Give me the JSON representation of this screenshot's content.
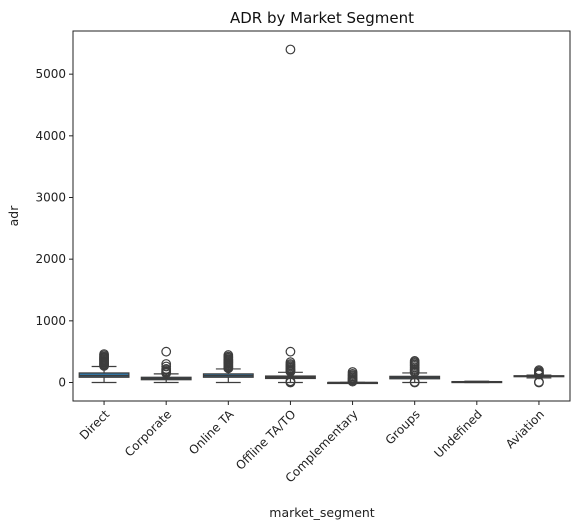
{
  "chart_data": {
    "type": "box",
    "title": "ADR by Market Segment",
    "xlabel": "market_segment",
    "ylabel": "adr",
    "ylim": [
      -300,
      5700
    ],
    "yticks": [
      0,
      1000,
      2000,
      3000,
      4000,
      5000
    ],
    "box_color": "#3274a1",
    "categories": [
      "Direct",
      "Corporate",
      "Online TA",
      "Offline TA/TO",
      "Complementary",
      "Groups",
      "Undefined",
      "Aviation"
    ],
    "boxes": [
      {
        "category": "Direct",
        "whisker_low": 0,
        "q1": 85,
        "median": 110,
        "q3": 155,
        "whisker_high": 260,
        "outliers": [
          270,
          285,
          300,
          315,
          330,
          345,
          360,
          375,
          390,
          405,
          420,
          440,
          460
        ]
      },
      {
        "category": "Corporate",
        "whisker_low": 0,
        "q1": 45,
        "median": 65,
        "q3": 85,
        "whisker_high": 140,
        "outliers": [
          150,
          165,
          180,
          200,
          220,
          260,
          300,
          500
        ]
      },
      {
        "category": "Online TA",
        "whisker_low": 0,
        "q1": 85,
        "median": 110,
        "q3": 140,
        "whisker_high": 220,
        "outliers": [
          230,
          245,
          260,
          275,
          290,
          305,
          320,
          335,
          350,
          365,
          380,
          400,
          420,
          445
        ]
      },
      {
        "category": "Offline TA/TO",
        "whisker_low": 0,
        "q1": 65,
        "median": 85,
        "q3": 105,
        "whisker_high": 165,
        "outliers": [
          0,
          10,
          20,
          175,
          190,
          205,
          220,
          240,
          260,
          280,
          300,
          330,
          500,
          5400
        ]
      },
      {
        "category": "Complementary",
        "whisker_low": 0,
        "q1": 0,
        "median": 0,
        "q3": 0,
        "whisker_high": 0,
        "outliers": [
          15,
          30,
          45,
          60,
          80,
          100,
          120,
          140,
          170
        ]
      },
      {
        "category": "Groups",
        "whisker_low": 0,
        "q1": 60,
        "median": 80,
        "q3": 100,
        "whisker_high": 155,
        "outliers": [
          0,
          10,
          165,
          180,
          200,
          220,
          245,
          270,
          290,
          310,
          330,
          350
        ]
      },
      {
        "category": "Undefined",
        "whisker_low": 0,
        "q1": 5,
        "median": 10,
        "q3": 15,
        "whisker_high": 20,
        "outliers": []
      },
      {
        "category": "Aviation",
        "whisker_low": 75,
        "q1": 95,
        "median": 100,
        "q3": 110,
        "whisker_high": 120,
        "outliers": [
          0,
          10,
          130,
          145,
          160,
          180,
          200
        ]
      }
    ]
  }
}
